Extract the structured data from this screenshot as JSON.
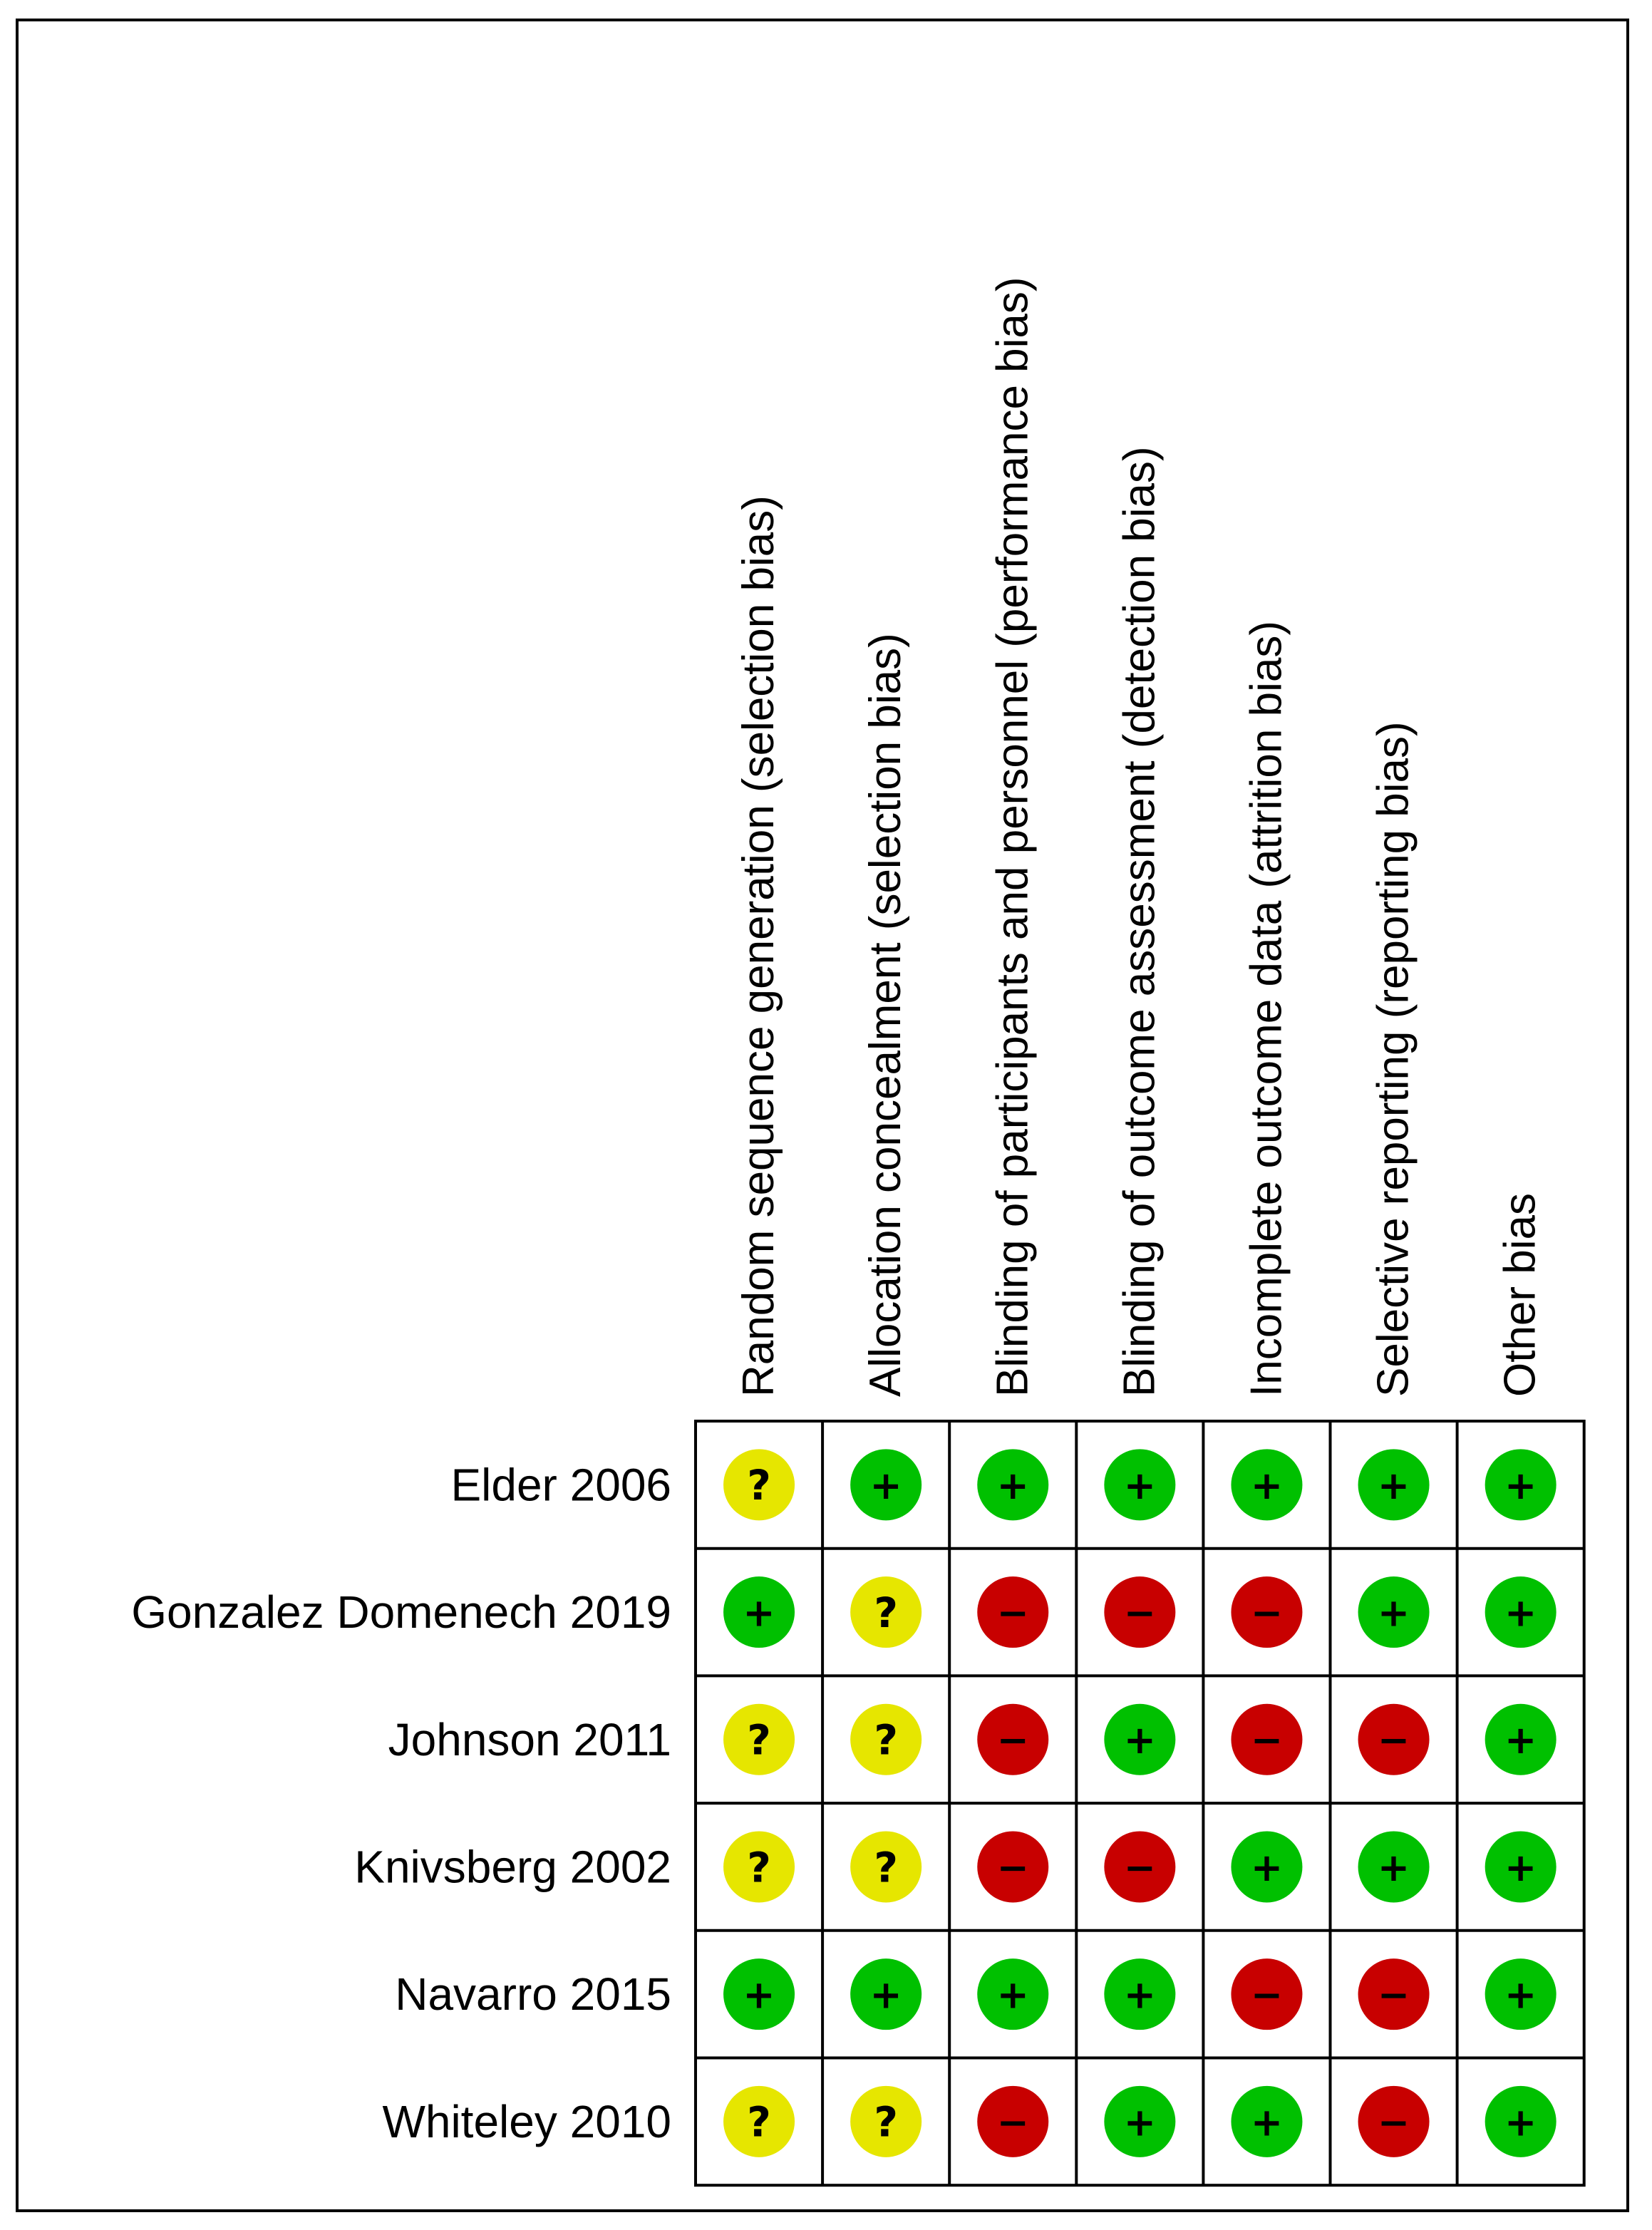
{
  "chart_data": {
    "type": "table",
    "columns": [
      "Random sequence generation (selection bias)",
      "Allocation concealment (selection bias)",
      "Blinding of participants and personnel (performance bias)",
      "Blinding of outcome assessment (detection bias)",
      "Incomplete outcome data (attrition bias)",
      "Selective reporting (reporting bias)",
      "Other bias"
    ],
    "rows": [
      "Elder 2006",
      "Gonzalez Domenech 2019",
      "Johnson 2011",
      "Knivsberg 2002",
      "Navarro 2015",
      "Whiteley 2010"
    ],
    "values": [
      [
        "?",
        "+",
        "+",
        "+",
        "+",
        "+",
        "+"
      ],
      [
        "+",
        "?",
        "-",
        "-",
        "-",
        "+",
        "+"
      ],
      [
        "?",
        "?",
        "-",
        "+",
        "-",
        "-",
        "+"
      ],
      [
        "?",
        "?",
        "-",
        "-",
        "+",
        "+",
        "+"
      ],
      [
        "+",
        "+",
        "+",
        "+",
        "-",
        "-",
        "+"
      ],
      [
        "?",
        "?",
        "-",
        "+",
        "+",
        "-",
        "+"
      ]
    ],
    "legend": {
      "+": {
        "symbol": "+",
        "color": "#00c000"
      },
      "?": {
        "symbol": "?",
        "color": "#e6e600"
      },
      "-": {
        "symbol": "−",
        "color": "#c80000"
      }
    }
  }
}
